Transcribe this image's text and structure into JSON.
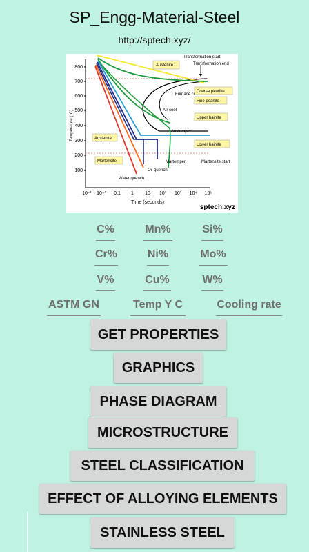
{
  "header": {
    "title": "SP_Engg-Material-Steel",
    "url": "http://sptech.xyz/"
  },
  "diagram": {
    "y_axis_label": "Temperature (°C)",
    "x_axis_label": "Time (seconds)",
    "y_ticks": [
      "800",
      "700",
      "600",
      "500",
      "400",
      "300",
      "200",
      "100"
    ],
    "x_ticks": [
      "10⁻¹",
      "10⁻²",
      "0.1",
      "1",
      "10",
      "10²",
      "10³",
      "10⁴",
      "10⁵"
    ],
    "labels": {
      "transformation_start": "Transformation start",
      "transformation_end": "Transformation end",
      "austenite_top": "Austenite",
      "furnace_cool": "Furnace cool",
      "coarse_pearlite": "Coarse pearlite",
      "fine_pearlite": "Fine pearlite",
      "air_cool": "Air cool",
      "upper_bainite": "Upper bainite",
      "austemper": "Austemper",
      "austenite_left": "Austenite",
      "lower_bainite": "Lower bainite",
      "martensite_box": "Martensite",
      "martemper": "Martemper",
      "martensite_start": "Martensite start",
      "oil_quench": "Oil quench",
      "water_quench": "Water quench",
      "watermark": "sptech.xyz"
    }
  },
  "fields": {
    "c": "C%",
    "mn": "Mn%",
    "si": "Si%",
    "cr": "Cr%",
    "ni": "Ni%",
    "mo": "Mo%",
    "v": "V%",
    "cu": "Cu%",
    "w": "W%",
    "astm": "ASTM GN",
    "temp": "Temp Y C",
    "cooling": "Cooling rate"
  },
  "buttons": {
    "get_properties": "GET PROPERTIES",
    "graphics": "GRAPHICS",
    "phase_diagram": "PHASE DIAGRAM",
    "microstructure": "MICROSTRUCTURE",
    "steel_classification": "STEEL CLASSIFICATION",
    "effect_alloying": "EFFECT OF ALLOYING ELEMENTS",
    "stainless_steel": "STAINLESS STEEL"
  }
}
